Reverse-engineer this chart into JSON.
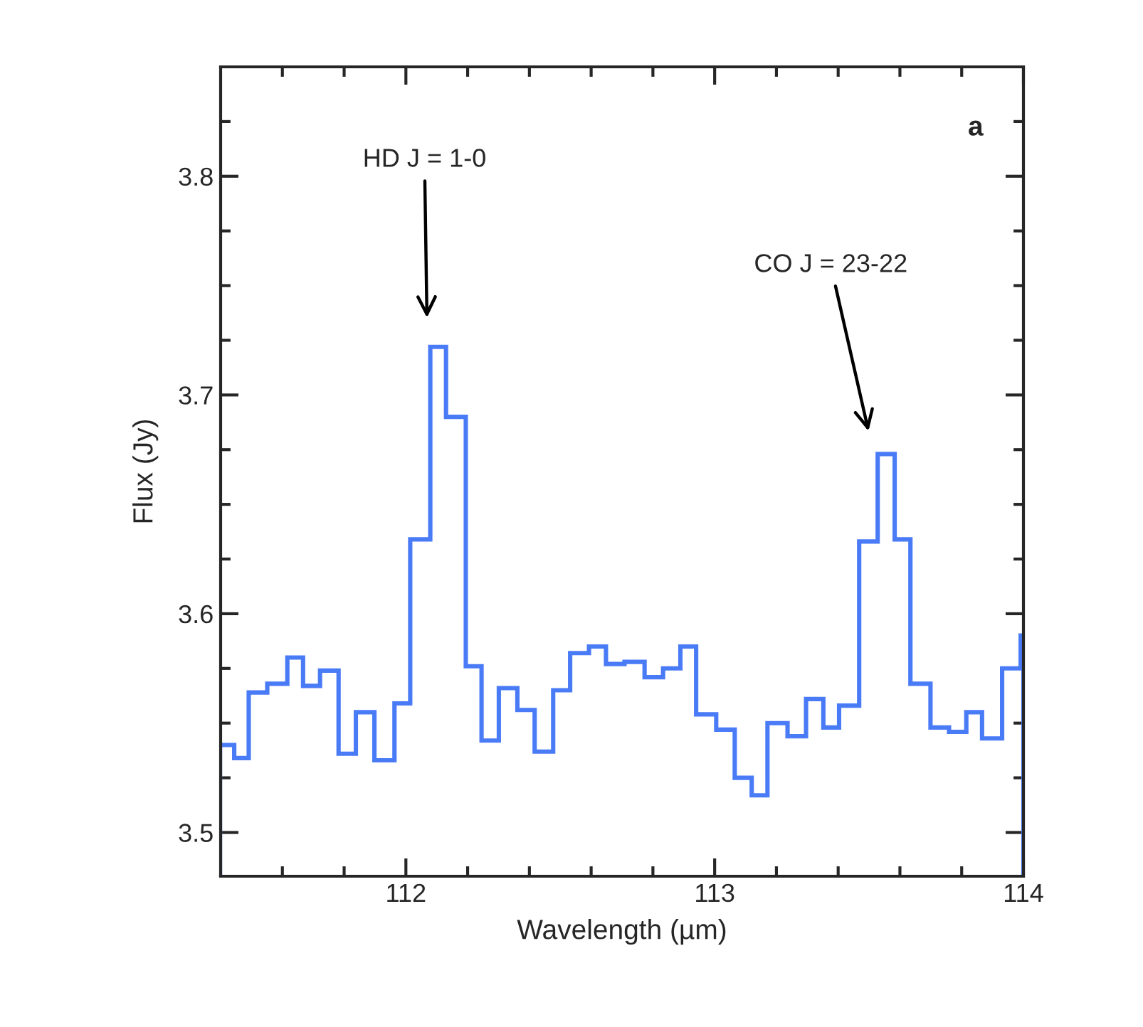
{
  "chart_data": {
    "type": "histogram",
    "xlabel": "Wavelength (µm)",
    "ylabel": "Flux (Jy)",
    "bins": [
      111.398,
      111.444,
      111.491,
      111.551,
      111.616,
      111.667,
      111.722,
      111.782,
      111.838,
      111.898,
      111.963,
      112.014,
      112.079,
      112.13,
      112.194,
      112.245,
      112.301,
      112.361,
      112.417,
      112.477,
      112.532,
      112.593,
      112.648,
      112.708,
      112.773,
      112.833,
      112.889,
      112.94,
      113.005,
      113.065,
      113.12,
      113.171,
      113.236,
      113.296,
      113.352,
      113.403,
      113.468,
      113.528,
      113.583,
      113.634,
      113.699,
      113.759,
      113.815,
      113.866,
      113.931,
      113.991,
      114.0
    ],
    "values": [
      3.54,
      3.534,
      3.564,
      3.568,
      3.58,
      3.567,
      3.574,
      3.536,
      3.555,
      3.533,
      3.559,
      3.634,
      3.722,
      3.69,
      3.576,
      3.542,
      3.566,
      3.556,
      3.537,
      3.565,
      3.582,
      3.585,
      3.577,
      3.578,
      3.571,
      3.575,
      3.585,
      3.554,
      3.547,
      3.525,
      3.517,
      3.55,
      3.544,
      3.561,
      3.548,
      3.558,
      3.633,
      3.673,
      3.634,
      3.568,
      3.548,
      3.546,
      3.555,
      3.543,
      3.575,
      3.59
    ],
    "color": "#4a7bf7",
    "xlim": [
      111.4,
      114.0
    ],
    "ylim": [
      3.48,
      3.85
    ],
    "xticks": [
      {
        "value": 111.6,
        "label": null
      },
      {
        "value": 111.8,
        "label": null
      },
      112,
      {
        "value": 112.2,
        "label": null
      },
      {
        "value": 112.4,
        "label": null
      },
      {
        "value": 112.6,
        "label": null
      },
      {
        "value": 112.8,
        "label": null
      },
      113,
      {
        "value": 113.2,
        "label": null
      },
      {
        "value": 113.4,
        "label": null
      },
      {
        "value": 113.6,
        "label": null
      },
      {
        "value": 113.8,
        "label": null
      },
      114
    ],
    "yticks": [
      3.5,
      {
        "value": 3.525,
        "label": null
      },
      {
        "value": 3.55,
        "label": null
      },
      {
        "value": 3.575,
        "label": null
      },
      3.6,
      {
        "value": 3.625,
        "label": null
      },
      {
        "value": 3.65,
        "label": null
      },
      {
        "value": 3.675,
        "label": null
      },
      3.7,
      {
        "value": 3.725,
        "label": null
      },
      {
        "value": 3.75,
        "label": null
      },
      {
        "value": 3.775,
        "label": null
      },
      3.8,
      {
        "value": 3.825,
        "label": null
      }
    ],
    "grid": false,
    "annotations": [
      "HD J = 1-0",
      "CO J = 23-22",
      "a"
    ]
  }
}
